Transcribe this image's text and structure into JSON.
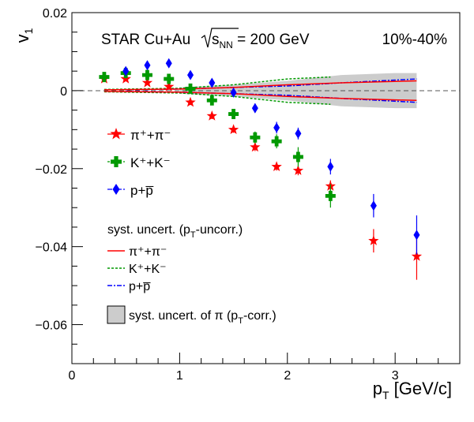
{
  "chart_data": {
    "type": "scatter",
    "xlabel": "p_T [GeV/c]",
    "ylabel": "v_1",
    "xlim": [
      0,
      3.6
    ],
    "ylim": [
      -0.07,
      0.02
    ],
    "x_ticks": [
      "0",
      "1",
      "2",
      "3"
    ],
    "y_ticks": [
      "0.02",
      "0",
      "−0.02",
      "−0.04",
      "−0.06"
    ],
    "y_tick_values": [
      0.02,
      0,
      -0.02,
      -0.04,
      -0.06
    ],
    "x_tick_values": [
      0,
      1,
      2,
      3
    ],
    "title_left": "STAR Cu+Au",
    "title_sqrt": "s",
    "title_sub": "NN",
    "title_energy": " = 200 GeV",
    "centrality": "10%-40%",
    "series": [
      {
        "name": "π⁺+π⁻",
        "marker": "star",
        "color": "#ff0000",
        "x": [
          0.3,
          0.5,
          0.7,
          0.9,
          1.1,
          1.3,
          1.5,
          1.7,
          1.9,
          2.1,
          2.4,
          2.8,
          3.2
        ],
        "y": [
          0.003,
          0.003,
          0.002,
          0.001,
          -0.003,
          -0.0065,
          -0.01,
          -0.0145,
          -0.0195,
          -0.0205,
          -0.0245,
          -0.0385,
          -0.0425
        ],
        "err": [
          0.0005,
          0.0005,
          0.0005,
          0.0005,
          0.0007,
          0.0008,
          0.0008,
          0.001,
          0.001,
          0.0012,
          0.0015,
          0.003,
          0.006
        ]
      },
      {
        "name": "K⁺+K⁻",
        "marker": "cross",
        "color": "#009900",
        "x": [
          0.3,
          0.5,
          0.7,
          0.9,
          1.1,
          1.3,
          1.5,
          1.7,
          1.9,
          2.1,
          2.4
        ],
        "y": [
          0.0035,
          0.0045,
          0.004,
          0.003,
          0.0005,
          -0.0025,
          -0.006,
          -0.012,
          -0.013,
          -0.017,
          -0.027
        ],
        "err": [
          0.0005,
          0.0005,
          0.0006,
          0.0007,
          0.0008,
          0.001,
          0.0012,
          0.0015,
          0.0018,
          0.0025,
          0.003
        ]
      },
      {
        "name": "p+p̅",
        "marker": "diamond",
        "color": "#0000ff",
        "x": [
          0.5,
          0.7,
          0.9,
          1.1,
          1.3,
          1.5,
          1.7,
          1.9,
          2.1,
          2.4,
          2.8,
          3.2
        ],
        "y": [
          0.005,
          0.0065,
          0.007,
          0.004,
          0.002,
          -0.0005,
          -0.0045,
          -0.0095,
          -0.011,
          -0.0195,
          -0.0295,
          -0.037
        ],
        "err": [
          0.0005,
          0.0006,
          0.0006,
          0.0007,
          0.0008,
          0.001,
          0.0012,
          0.0015,
          0.0015,
          0.002,
          0.003,
          0.005
        ]
      }
    ],
    "systematics": {
      "pi_corr_band": {
        "x": [
          1.0,
          1.5,
          2.0,
          2.5,
          3.0,
          3.2
        ],
        "upper": [
          0.0008,
          0.0015,
          0.0025,
          0.004,
          0.0045,
          0.0045
        ],
        "lower": [
          -0.0008,
          -0.0015,
          -0.0025,
          -0.004,
          -0.0045,
          -0.0045
        ]
      },
      "pi_uncorr": {
        "x": [
          0.3,
          1.0,
          1.5,
          2.0,
          2.5,
          3.2
        ],
        "upper": [
          0.0002,
          0.0004,
          0.0008,
          0.0015,
          0.002,
          0.0025
        ],
        "lower": [
          -0.0002,
          -0.0004,
          -0.0008,
          -0.0015,
          -0.002,
          -0.0025
        ]
      },
      "k_uncorr": {
        "x": [
          0.3,
          1.0,
          1.5,
          2.0,
          2.4
        ],
        "upper": [
          0.0003,
          0.0006,
          0.0015,
          0.003,
          0.0035
        ],
        "lower": [
          -0.0003,
          -0.0006,
          -0.0015,
          -0.003,
          -0.0035
        ]
      },
      "p_uncorr": {
        "x": [
          0.5,
          1.0,
          1.5,
          2.0,
          2.5,
          3.2
        ],
        "upper": [
          0.0002,
          0.0004,
          0.0008,
          0.0012,
          0.002,
          0.003
        ],
        "lower": [
          -0.0002,
          -0.0004,
          -0.0008,
          -0.0012,
          -0.002,
          -0.003
        ]
      }
    },
    "legend": {
      "pi": "π⁺+π⁻",
      "k": "K⁺+K⁻",
      "p": "p+p̅",
      "syst_title": "syst. uncert. (p",
      "syst_title_sub": "T",
      "syst_title_end": "-uncorr.)",
      "syst_pi": "π⁺+π⁻",
      "syst_k": "K⁺+K⁻",
      "syst_p": "p+p̅",
      "band_label": "syst. uncert. of π (p",
      "band_label_sub": "T",
      "band_label_end": "-corr.)"
    },
    "colors": {
      "pi": "#ff0000",
      "k": "#009900",
      "p": "#0000ff",
      "band": "#cccccc"
    }
  }
}
